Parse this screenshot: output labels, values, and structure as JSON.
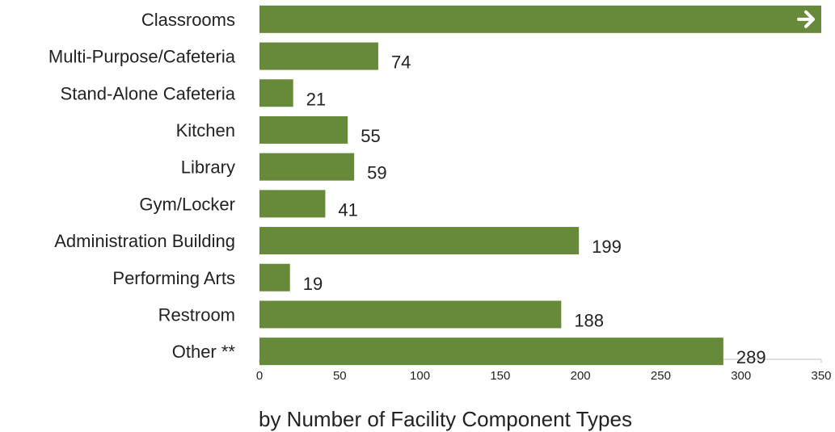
{
  "chart_data": {
    "type": "bar",
    "orientation": "horizontal",
    "categories": [
      "Classrooms",
      "Multi-Purpose/Cafeteria",
      "Stand-Alone Cafeteria",
      "Kitchen",
      "Library",
      "Gym/Locker",
      "Administration Building",
      "Performing Arts",
      "Restroom",
      "Other **"
    ],
    "values": [
      350,
      74,
      21,
      55,
      59,
      41,
      199,
      19,
      188,
      289
    ],
    "value_labels": [
      "",
      "74",
      "21",
      "55",
      "59",
      "41",
      "199",
      "19",
      "188",
      "289"
    ],
    "truncated": [
      true,
      false,
      false,
      false,
      false,
      false,
      false,
      false,
      false,
      false
    ],
    "truncated_marker_icon": "arrow-right-icon",
    "xlabel": "by Number of Facility Component Types",
    "ylabel": "",
    "xlim": [
      0,
      350
    ],
    "xticks": [
      0,
      50,
      100,
      150,
      200,
      250,
      300,
      350
    ],
    "grid": false,
    "legend": "none",
    "colors": {
      "bar": "#66893a",
      "text": "#222222",
      "axis": "#bfbfbf",
      "arrow": "#ffffff"
    }
  }
}
